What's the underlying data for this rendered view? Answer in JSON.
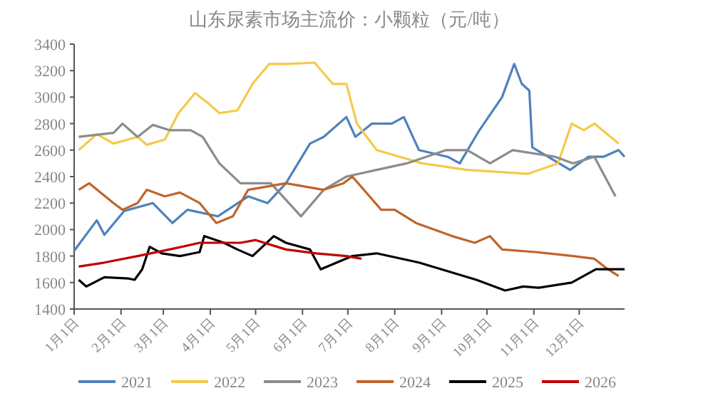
{
  "chart_data": {
    "type": "line",
    "title": "山东尿素市场主流价：小颗粒（元/吨）",
    "xlim": [
      "--01-01",
      "--12-31"
    ],
    "ylim": [
      1400,
      3400
    ],
    "yticks": [
      1400,
      1600,
      1800,
      2000,
      2200,
      2400,
      2600,
      2800,
      3000,
      3200,
      3400
    ],
    "xticks": [
      {
        "value": "--01-01",
        "label": "1月1日"
      },
      {
        "value": "--02-01",
        "label": "2月1日"
      },
      {
        "value": "--03-01",
        "label": "3月1日"
      },
      {
        "value": "--04-01",
        "label": "4月1日"
      },
      {
        "value": "--05-01",
        "label": "5月1日"
      },
      {
        "value": "--06-01",
        "label": "6月1日"
      },
      {
        "value": "--07-01",
        "label": "7月1日"
      },
      {
        "value": "--08-01",
        "label": "8月1日"
      },
      {
        "value": "--09-01",
        "label": "9月1日"
      },
      {
        "value": "--10-01",
        "label": "10月1日"
      },
      {
        "value": "--11-01",
        "label": "11月1日"
      },
      {
        "value": "--12-01",
        "label": "12月1日"
      }
    ],
    "legend": "bottom",
    "grid": false,
    "series": [
      {
        "name": "2021",
        "color": "#4f81bd",
        "x": [
          "--01-01",
          "--01-16",
          "--01-21",
          "--02-03",
          "--02-22",
          "--03-07",
          "--03-17",
          "--04-06",
          "--04-26",
          "--05-09",
          "--05-21",
          "--06-06",
          "--06-15",
          "--06-30",
          "--07-06",
          "--07-17",
          "--07-30",
          "--08-07",
          "--08-17",
          "--09-05",
          "--09-13",
          "--09-26",
          "--10-11",
          "--10-19",
          "--10-24",
          "--10-29",
          "--10-31",
          "--11-25",
          "--12-07",
          "--12-17",
          "--12-27",
          "--12-31"
        ],
        "values": [
          1840,
          2070,
          1960,
          2140,
          2200,
          2050,
          2150,
          2100,
          2250,
          2200,
          2350,
          2650,
          2700,
          2850,
          2700,
          2800,
          2800,
          2850,
          2600,
          2550,
          2500,
          2750,
          3000,
          3250,
          3100,
          3050,
          2620,
          2450,
          2550,
          2550,
          2600,
          2550
        ]
      },
      {
        "name": "2022",
        "color": "#f5c94a",
        "x": [
          "--01-04",
          "--01-16",
          "--01-27",
          "--02-12",
          "--02-18",
          "--03-02",
          "--03-11",
          "--03-22",
          "--03-31",
          "--04-07",
          "--04-19",
          "--04-29",
          "--05-10",
          "--05-21",
          "--06-09",
          "--06-21",
          "--06-30",
          "--07-07",
          "--07-20",
          "--08-19",
          "--09-18",
          "--10-28",
          "--11-17",
          "--11-26",
          "--12-04",
          "--12-11",
          "--12-27"
        ],
        "values": [
          2600,
          2720,
          2650,
          2700,
          2640,
          2680,
          2880,
          3030,
          2950,
          2880,
          2900,
          3100,
          3250,
          3250,
          3260,
          3100,
          3100,
          2800,
          2600,
          2500,
          2450,
          2420,
          2500,
          2800,
          2750,
          2800,
          2650
        ]
      },
      {
        "name": "2023",
        "color": "#8c8c8c",
        "x": [
          "--01-04",
          "--01-27",
          "--02-02",
          "--02-12",
          "--02-22",
          "--03-05",
          "--03-19",
          "--03-27",
          "--04-07",
          "--04-21",
          "--05-11",
          "--05-31",
          "--06-15",
          "--06-30",
          "--07-20",
          "--08-09",
          "--09-04",
          "--09-18",
          "--10-03",
          "--10-18",
          "--11-15",
          "--11-27",
          "--12-11",
          "--12-25"
        ],
        "values": [
          2700,
          2730,
          2800,
          2700,
          2790,
          2750,
          2750,
          2700,
          2500,
          2350,
          2350,
          2100,
          2300,
          2400,
          2450,
          2500,
          2600,
          2600,
          2500,
          2600,
          2550,
          2500,
          2550,
          2250
        ]
      },
      {
        "name": "2024",
        "color": "#c0652b",
        "x": [
          "--01-04",
          "--01-11",
          "--01-27",
          "--02-02",
          "--02-12",
          "--02-18",
          "--03-02",
          "--03-12",
          "--03-25",
          "--04-05",
          "--04-16",
          "--04-26",
          "--05-21",
          "--06-15",
          "--06-28",
          "--07-04",
          "--07-23",
          "--08-01",
          "--08-15",
          "--09-08",
          "--09-23",
          "--10-03",
          "--10-11",
          "--11-02",
          "--11-27",
          "--12-11",
          "--12-20",
          "--12-27"
        ],
        "values": [
          2300,
          2350,
          2200,
          2150,
          2200,
          2300,
          2250,
          2280,
          2200,
          2050,
          2100,
          2300,
          2350,
          2300,
          2350,
          2400,
          2150,
          2150,
          2050,
          1950,
          1900,
          1950,
          1850,
          1830,
          1800,
          1780,
          1700,
          1650
        ]
      },
      {
        "name": "2025",
        "color": "#000000",
        "x": [
          "--01-04",
          "--01-09",
          "--01-21",
          "--02-06",
          "--02-10",
          "--02-15",
          "--02-20",
          "--02-28",
          "--03-12",
          "--03-25",
          "--03-28",
          "--04-10",
          "--04-19",
          "--04-29",
          "--05-13",
          "--05-21",
          "--06-06",
          "--06-13",
          "--07-04",
          "--07-20",
          "--08-17",
          "--09-24",
          "--10-13",
          "--10-25",
          "--11-04",
          "--11-26",
          "--12-12",
          "--12-31"
        ],
        "values": [
          1620,
          1570,
          1640,
          1630,
          1620,
          1700,
          1870,
          1820,
          1800,
          1830,
          1950,
          1900,
          1850,
          1800,
          1950,
          1900,
          1850,
          1700,
          1800,
          1820,
          1750,
          1620,
          1540,
          1570,
          1560,
          1600,
          1700,
          1700
        ]
      },
      {
        "name": "2026",
        "color": "#c00000",
        "x": [
          "--01-04",
          "--01-21",
          "--02-12",
          "--03-05",
          "--03-25",
          "--04-21",
          "--05-01",
          "--05-21",
          "--06-10",
          "--06-30",
          "--07-10"
        ],
        "values": [
          1720,
          1750,
          1800,
          1850,
          1900,
          1900,
          1920,
          1850,
          1820,
          1800,
          1780
        ]
      }
    ]
  }
}
